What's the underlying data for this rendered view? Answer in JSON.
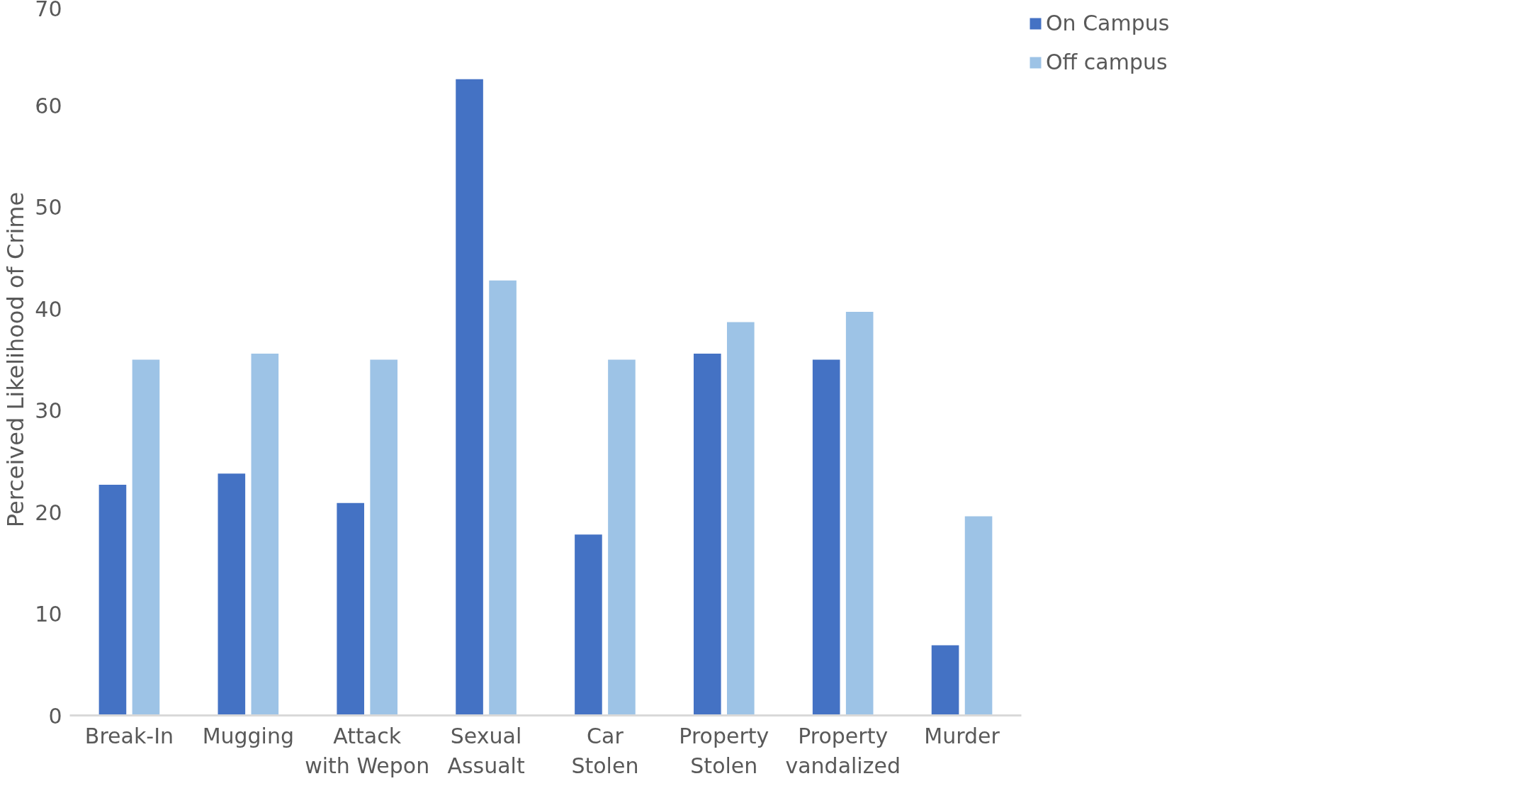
{
  "chart_data": {
    "type": "bar",
    "ylabel": "Perceived Likelihood of Crime",
    "categories": [
      "Break-In",
      "Mugging",
      "Attack with Wepon",
      "Sexual Assualt",
      "Car Stolen",
      "Property Stolen",
      "Property vandalized",
      "Murder"
    ],
    "series": [
      {
        "name": "On Campus",
        "color": "#4472c4",
        "values": [
          22.7,
          23.8,
          20.9,
          62.6,
          17.8,
          35.6,
          35,
          6.9
        ]
      },
      {
        "name": "Off campus",
        "color": "#9dc3e6",
        "values": [
          35,
          35.6,
          35,
          42.8,
          35,
          38.7,
          39.7,
          19.6
        ]
      }
    ],
    "ylim": [
      0,
      70
    ],
    "yticks": [
      0,
      10,
      20,
      30,
      40,
      50,
      60,
      70
    ],
    "grid": false,
    "legend": "top right"
  }
}
